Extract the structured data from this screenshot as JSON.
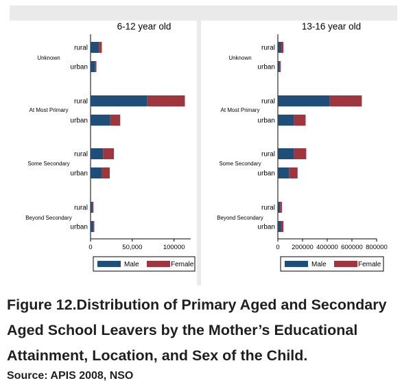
{
  "chart_data": {
    "type": "bar",
    "orientation": "horizontal",
    "stacked": true,
    "colors": {
      "male": "#1f4e79",
      "female": "#a0363d"
    },
    "series_names": [
      "Male",
      "Female"
    ],
    "groups": [
      "Unknown",
      "At Most Primary",
      "Some Secondary",
      "Beyond Secondary"
    ],
    "locations": [
      "rural",
      "urban"
    ],
    "legend_placement": "bottom",
    "panels": [
      {
        "title": "6-12 year old",
        "xlim": [
          0,
          120000
        ],
        "ticks": [
          0,
          50000,
          100000
        ],
        "tick_labels": [
          "0",
          "50,000",
          "100000"
        ],
        "data": [
          {
            "group": "Unknown",
            "location": "rural",
            "male": 10000,
            "female": 3500
          },
          {
            "group": "Unknown",
            "location": "urban",
            "male": 5500,
            "female": 1500
          },
          {
            "group": "At Most Primary",
            "location": "rural",
            "male": 68000,
            "female": 45000
          },
          {
            "group": "At Most Primary",
            "location": "urban",
            "male": 23500,
            "female": 12000
          },
          {
            "group": "Some Secondary",
            "location": "rural",
            "male": 15000,
            "female": 13000
          },
          {
            "group": "Some Secondary",
            "location": "urban",
            "male": 13500,
            "female": 9500
          },
          {
            "group": "Beyond Secondary",
            "location": "rural",
            "male": 2000,
            "female": 1500
          },
          {
            "group": "Beyond Secondary",
            "location": "urban",
            "male": 3500,
            "female": 1000
          }
        ]
      },
      {
        "title": "13-16 year old",
        "xlim": [
          0,
          800000
        ],
        "ticks": [
          0,
          200000,
          400000,
          600000,
          800000
        ],
        "tick_labels": [
          "0",
          "200000",
          "400000",
          "600000",
          "800000"
        ],
        "data": [
          {
            "group": "Unknown",
            "location": "rural",
            "male": 25000,
            "female": 20000
          },
          {
            "group": "Unknown",
            "location": "urban",
            "male": 15000,
            "female": 8000
          },
          {
            "group": "At Most Primary",
            "location": "rural",
            "male": 420000,
            "female": 260000
          },
          {
            "group": "At Most Primary",
            "location": "urban",
            "male": 130000,
            "female": 95000
          },
          {
            "group": "Some Secondary",
            "location": "rural",
            "male": 130000,
            "female": 100000
          },
          {
            "group": "Some Secondary",
            "location": "urban",
            "male": 90000,
            "female": 70000
          },
          {
            "group": "Beyond Secondary",
            "location": "rural",
            "male": 18000,
            "female": 15000
          },
          {
            "group": "Beyond Secondary",
            "location": "urban",
            "male": 25000,
            "female": 20000
          }
        ]
      }
    ]
  },
  "caption": {
    "line1": "Figure 12.Distribution of Primary Aged and Secondary",
    "line2": "Aged School Leavers by the Mother’s Educational",
    "line3": "Attainment, Location, and Sex of the Child.",
    "source": "Source: APIS 2008, NSO"
  }
}
